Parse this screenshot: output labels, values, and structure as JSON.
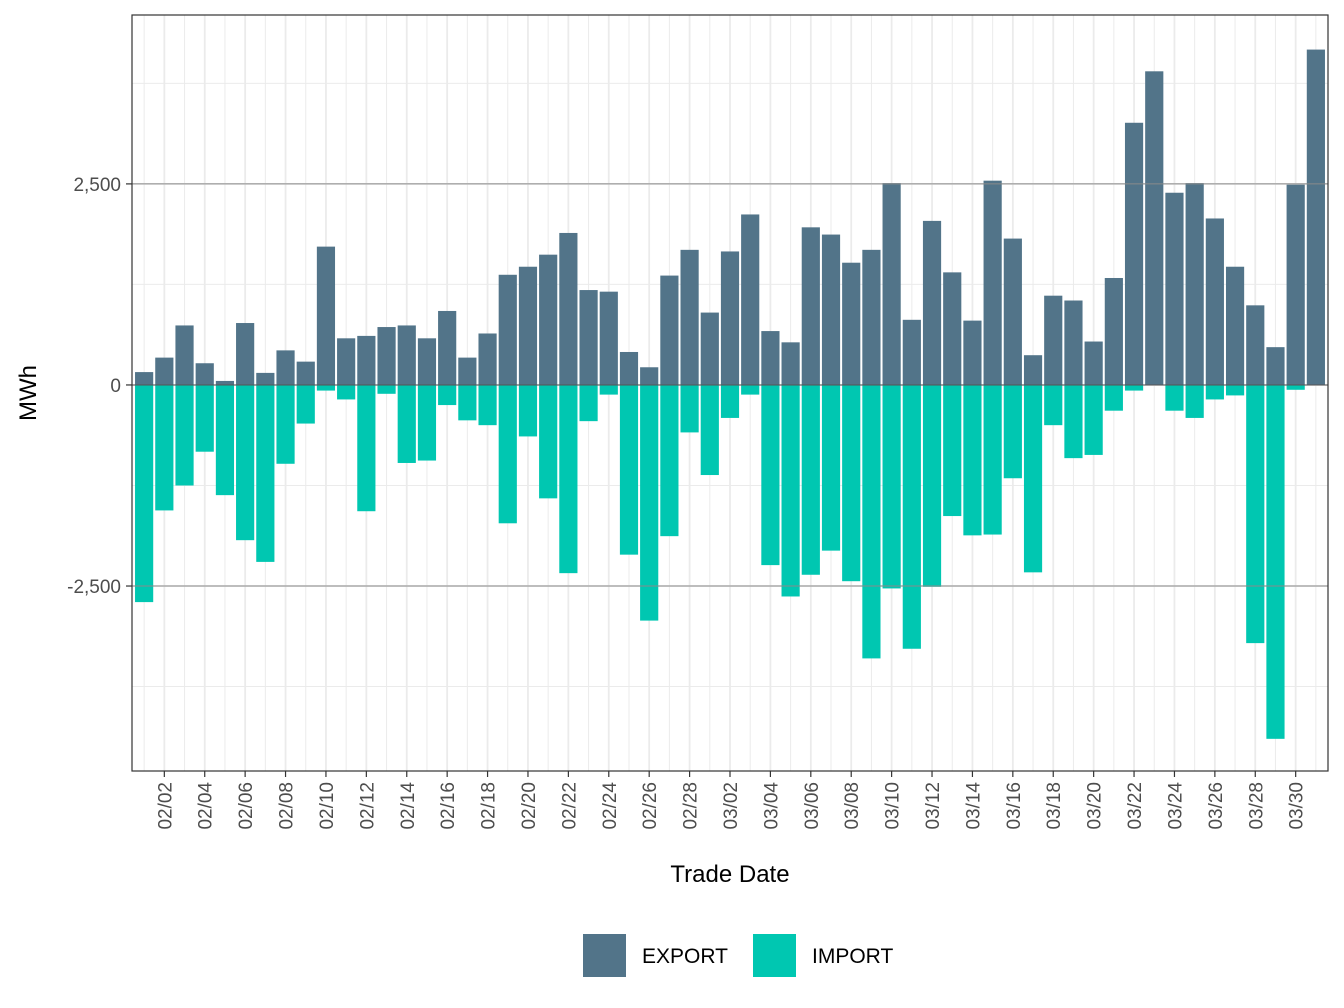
{
  "chart_data": {
    "type": "bar",
    "stacked": "diverging",
    "xlabel": "Trade Date",
    "ylabel": "MWh",
    "ylim": [
      -4800,
      4600
    ],
    "y_ticks": [
      -2500,
      0,
      2500
    ],
    "y_tick_labels": [
      "-2,500",
      "0",
      "2,500"
    ],
    "grid": true,
    "legend_position": "bottom",
    "colors": {
      "EXPORT": "#527489",
      "IMPORT": "#00c7b1"
    },
    "categories": [
      "02/01",
      "02/02",
      "02/03",
      "02/04",
      "02/05",
      "02/06",
      "02/07",
      "02/08",
      "02/09",
      "02/10",
      "02/11",
      "02/12",
      "02/13",
      "02/14",
      "02/15",
      "02/16",
      "02/17",
      "02/18",
      "02/19",
      "02/20",
      "02/21",
      "02/22",
      "02/23",
      "02/24",
      "02/25",
      "02/26",
      "02/27",
      "02/28",
      "03/01",
      "03/02",
      "03/03",
      "03/04",
      "03/05",
      "03/06",
      "03/07",
      "03/08",
      "03/09",
      "03/10",
      "03/11",
      "03/12",
      "03/13",
      "03/14",
      "03/15",
      "03/16",
      "03/17",
      "03/18",
      "03/19",
      "03/20",
      "03/21",
      "03/22",
      "03/23",
      "03/24",
      "03/25",
      "03/26",
      "03/27",
      "03/28",
      "03/29",
      "03/30",
      "03/31"
    ],
    "x_tick_labels": [
      "02/02",
      "02/04",
      "02/06",
      "02/08",
      "02/10",
      "02/12",
      "02/14",
      "02/16",
      "02/18",
      "02/20",
      "02/22",
      "02/24",
      "02/26",
      "02/28",
      "03/02",
      "03/04",
      "03/06",
      "03/08",
      "03/10",
      "03/12",
      "03/14",
      "03/16",
      "03/18",
      "03/20",
      "03/22",
      "03/24",
      "03/26",
      "03/28",
      "03/30"
    ],
    "series": [
      {
        "name": "EXPORT",
        "values": [
          160,
          340,
          740,
          270,
          50,
          770,
          150,
          430,
          290,
          1720,
          580,
          610,
          720,
          740,
          580,
          920,
          340,
          640,
          1370,
          1470,
          1620,
          1890,
          1180,
          1160,
          410,
          220,
          1360,
          1680,
          900,
          1660,
          2120,
          670,
          530,
          1960,
          1870,
          1520,
          1680,
          2510,
          810,
          2040,
          1400,
          800,
          2540,
          1820,
          370,
          1110,
          1050,
          540,
          1330,
          3260,
          3900,
          2390,
          2510,
          2070,
          1470,
          990,
          470,
          2490,
          4170
        ]
      },
      {
        "name": "IMPORT",
        "values": [
          -2700,
          -1560,
          -1250,
          -830,
          -1370,
          -1930,
          -2200,
          -980,
          -480,
          -70,
          -180,
          -1570,
          -110,
          -970,
          -940,
          -250,
          -440,
          -500,
          -1720,
          -640,
          -1410,
          -2340,
          -450,
          -120,
          -2110,
          -2930,
          -1880,
          -590,
          -1120,
          -410,
          -120,
          -2240,
          -2630,
          -2360,
          -2060,
          -2440,
          -3400,
          -2530,
          -3280,
          -2510,
          -1630,
          -1870,
          -1860,
          -1160,
          -2330,
          -500,
          -910,
          -870,
          -320,
          -70,
          0,
          -320,
          -410,
          -180,
          -130,
          -3210,
          -4400,
          -60,
          0
        ]
      }
    ]
  }
}
